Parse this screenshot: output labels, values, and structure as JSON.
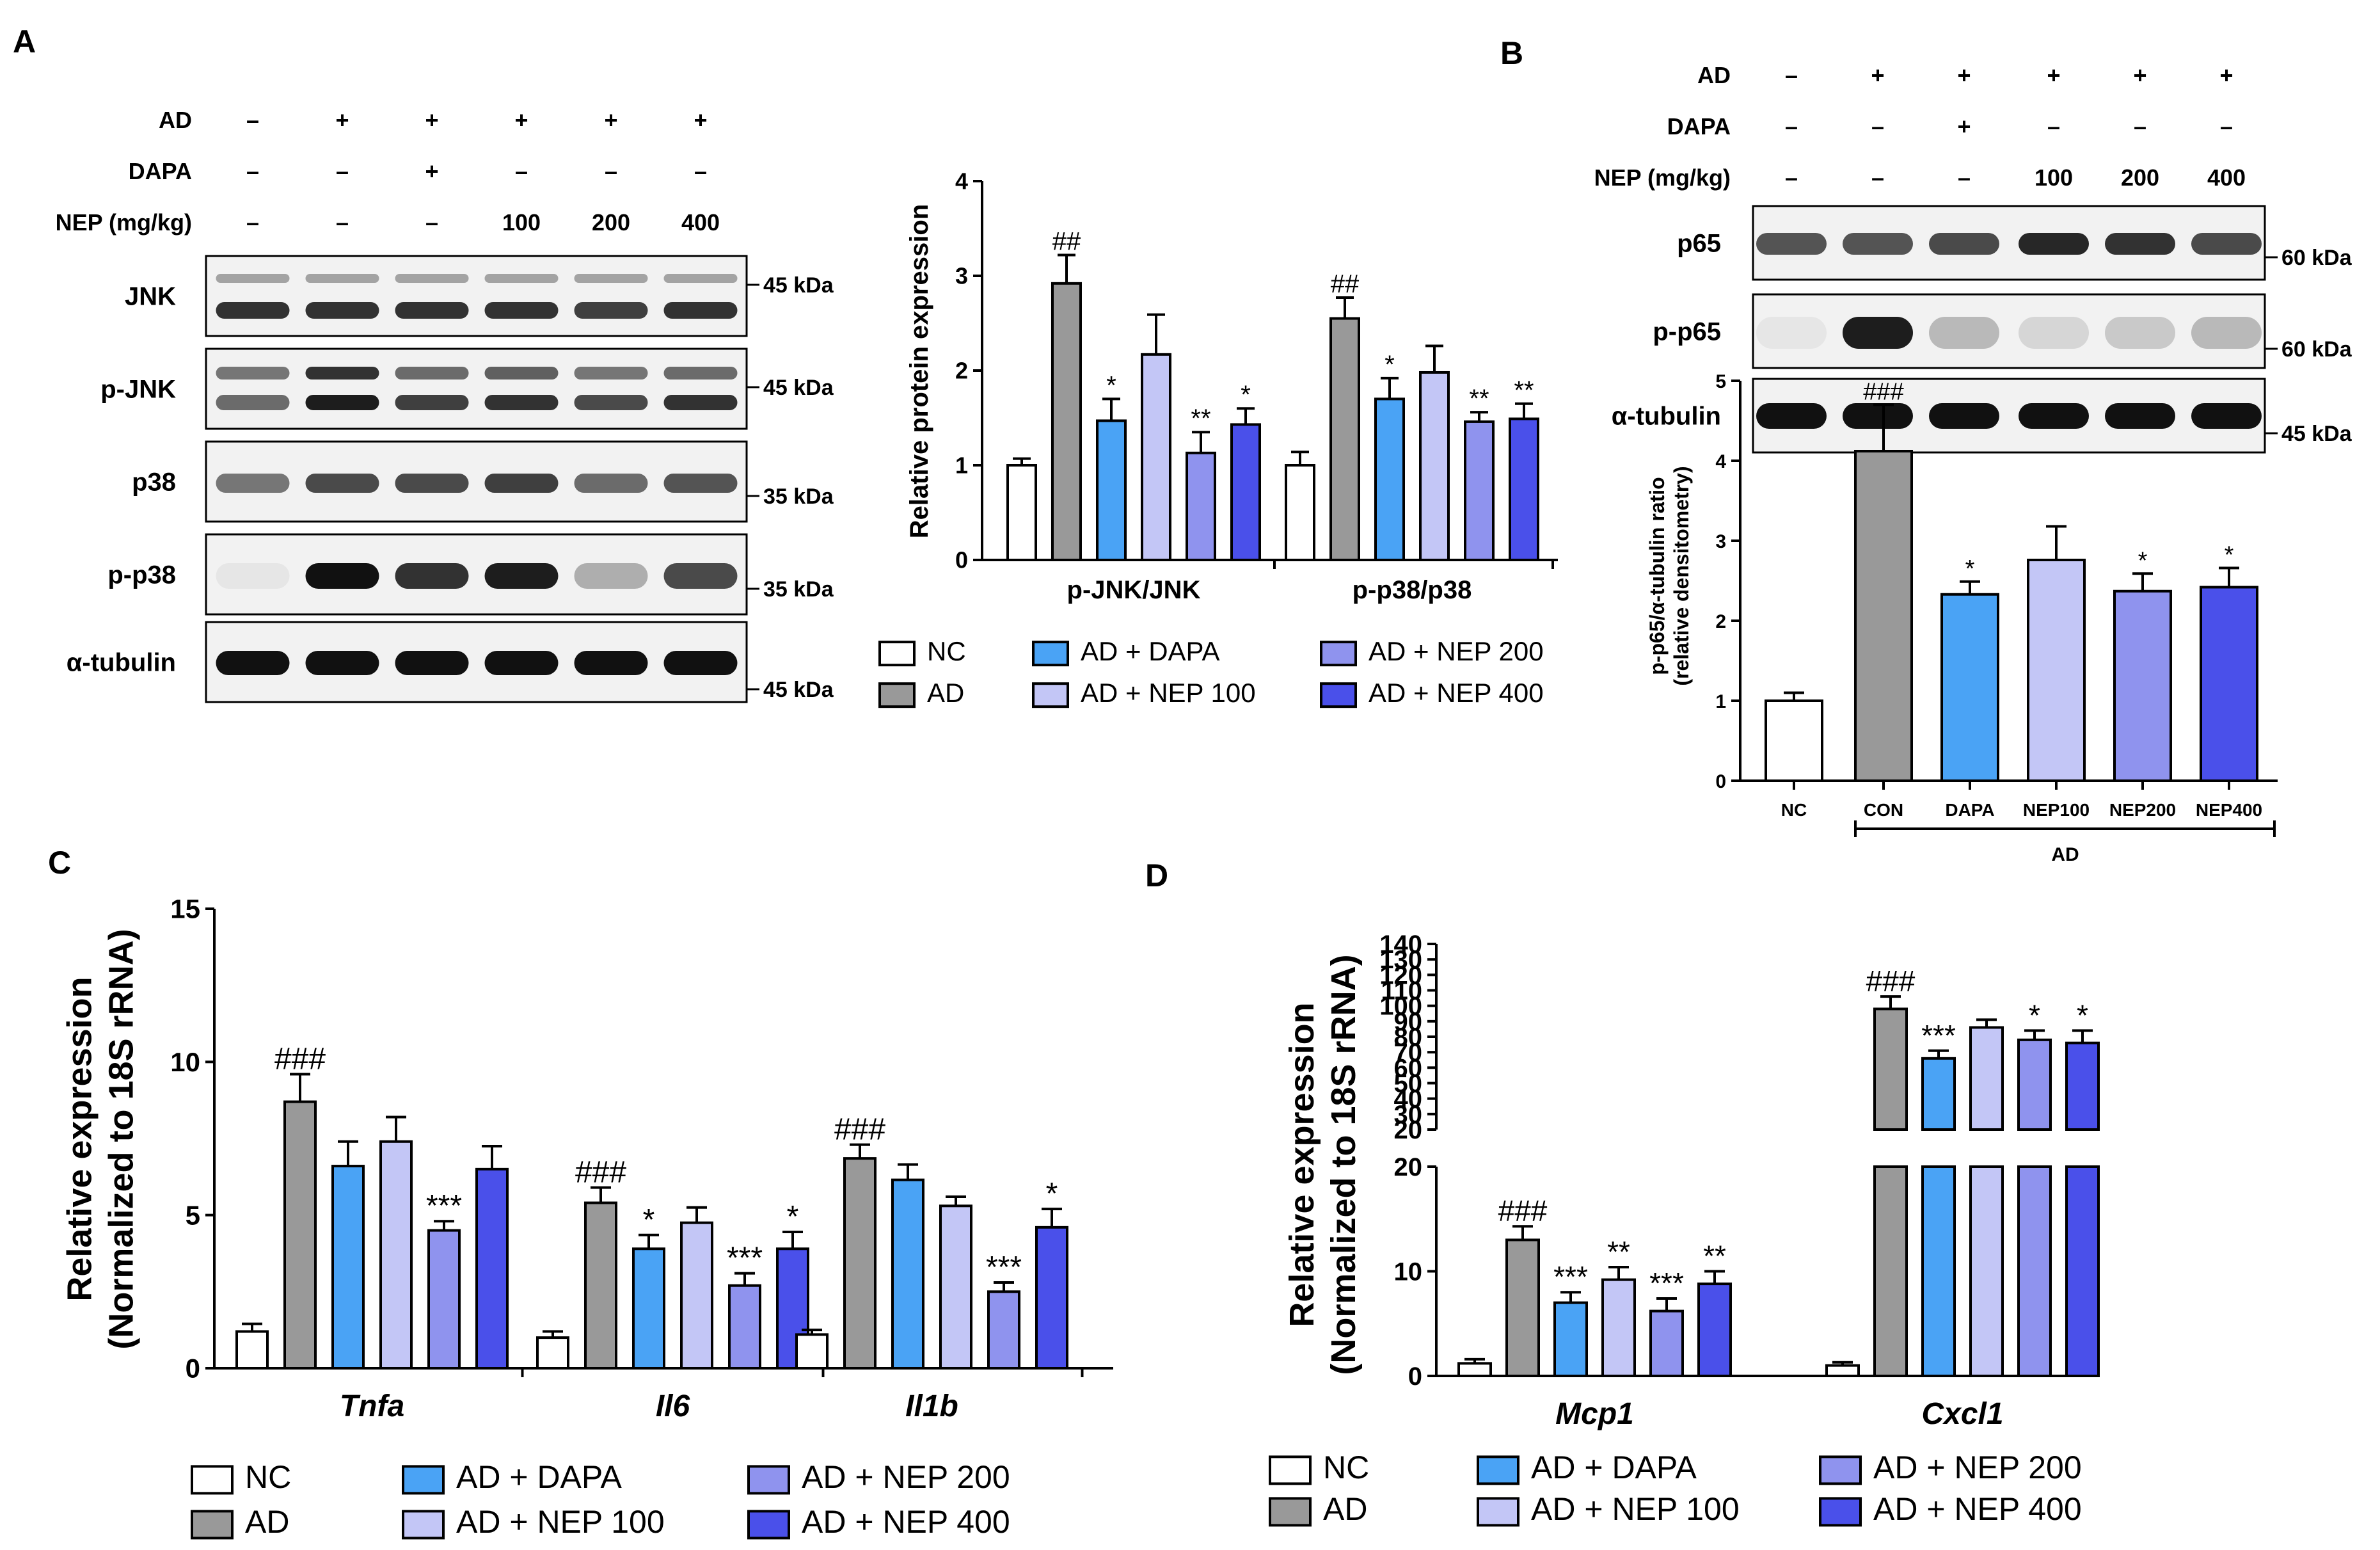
{
  "panels": [
    {
      "id": "A",
      "label": "A"
    },
    {
      "id": "B",
      "label": "B"
    },
    {
      "id": "C",
      "label": "C"
    },
    {
      "id": "D",
      "label": "D"
    }
  ],
  "legend": {
    "entries": [
      "NC",
      "AD",
      "AD + DAPA",
      "AD + NEP 100",
      "AD + NEP 200",
      "AD + NEP 400"
    ],
    "colors": [
      "#ffffff",
      "#999999",
      "#4aa3f5",
      "#c3c6f6",
      "#8f93ee",
      "#4a50ea"
    ]
  },
  "blot_a": {
    "conditions": [
      {
        "label": "AD",
        "values": [
          "–",
          "+",
          "+",
          "+",
          "+",
          "+"
        ]
      },
      {
        "label": "DAPA",
        "values": [
          "–",
          "–",
          "+",
          "–",
          "–",
          "–"
        ]
      },
      {
        "label": "NEP (mg/kg)",
        "values": [
          "–",
          "–",
          "–",
          "100",
          "200",
          "400"
        ]
      }
    ],
    "rows": [
      {
        "label": "JNK",
        "markers": [
          "45 kDa"
        ]
      },
      {
        "label": "p-JNK",
        "markers": [
          "45 kDa"
        ]
      },
      {
        "label": "p38",
        "markers": [
          "35 kDa"
        ]
      },
      {
        "label": "p-p38",
        "markers": [
          "35 kDa"
        ]
      },
      {
        "label": "α-tubulin",
        "markers": [
          "45 kDa"
        ]
      }
    ]
  },
  "blot_b": {
    "conditions": [
      {
        "label": "AD",
        "values": [
          "–",
          "+",
          "+",
          "+",
          "+",
          "+"
        ]
      },
      {
        "label": "DAPA",
        "values": [
          "–",
          "–",
          "+",
          "–",
          "–",
          "–"
        ]
      },
      {
        "label": "NEP (mg/kg)",
        "values": [
          "–",
          "–",
          "–",
          "100",
          "200",
          "400"
        ]
      }
    ],
    "rows": [
      {
        "label": "p65",
        "markers": [
          "60 kDa"
        ]
      },
      {
        "label": "p-p65",
        "markers": [
          "60 kDa"
        ]
      },
      {
        "label": "α-tubulin",
        "markers": [
          "45 kDa"
        ]
      }
    ]
  },
  "chart_data": [
    {
      "panel": "A",
      "type": "bar",
      "title": "",
      "ylabel": "Relative protein expression",
      "ylim": [
        0,
        4
      ],
      "yticks": [
        0,
        1,
        2,
        3,
        4
      ],
      "categories": [
        "p-JNK/JNK",
        "p-p38/p38"
      ],
      "series": [
        {
          "name": "NC",
          "values": [
            1.0,
            1.0
          ],
          "errors": [
            0.07,
            0.14
          ],
          "marks": [
            "",
            ""
          ]
        },
        {
          "name": "AD",
          "values": [
            2.92,
            2.55
          ],
          "errors": [
            0.3,
            0.22
          ],
          "marks": [
            "##",
            "##"
          ]
        },
        {
          "name": "AD + DAPA",
          "values": [
            1.47,
            1.7
          ],
          "errors": [
            0.23,
            0.22
          ],
          "marks": [
            "*",
            "*"
          ]
        },
        {
          "name": "AD + NEP 100",
          "values": [
            2.17,
            1.98
          ],
          "errors": [
            0.42,
            0.28
          ],
          "marks": [
            "",
            ""
          ]
        },
        {
          "name": "AD + NEP 200",
          "values": [
            1.13,
            1.46
          ],
          "errors": [
            0.22,
            0.1
          ],
          "marks": [
            "**",
            "**"
          ]
        },
        {
          "name": "AD + NEP 400",
          "values": [
            1.43,
            1.49
          ],
          "errors": [
            0.17,
            0.16
          ],
          "marks": [
            "*",
            "**"
          ]
        }
      ]
    },
    {
      "panel": "B",
      "type": "bar",
      "title": "",
      "ylabel": "p-p65/α-tubulin ratio\n(relative densitometry)",
      "ylim": [
        0,
        5
      ],
      "yticks": [
        0,
        1,
        2,
        3,
        4,
        5
      ],
      "categories": [
        "NC",
        "CON",
        "DAPA",
        "NEP100",
        "NEP200",
        "NEP400"
      ],
      "group_label": "AD",
      "values": [
        1.0,
        4.12,
        2.33,
        2.76,
        2.37,
        2.42
      ],
      "errors": [
        0.1,
        0.58,
        0.16,
        0.42,
        0.22,
        0.24
      ],
      "marks": [
        "",
        "###",
        "*",
        "",
        "*",
        "*"
      ]
    },
    {
      "panel": "C",
      "type": "bar",
      "title": "",
      "ylabel": "Relative expression\n(Normalized to 18S rRNA)",
      "ylim": [
        0,
        15
      ],
      "yticks": [
        0,
        5,
        10,
        15
      ],
      "categories": [
        "Tnfa",
        "Il6",
        "Il1b"
      ],
      "series": [
        {
          "name": "NC",
          "values": [
            1.2,
            1.0,
            1.1
          ],
          "errors": [
            0.25,
            0.2,
            0.15
          ],
          "marks": [
            "",
            "",
            ""
          ]
        },
        {
          "name": "AD",
          "values": [
            8.7,
            5.4,
            6.85
          ],
          "errors": [
            0.9,
            0.5,
            0.45
          ],
          "marks": [
            "###",
            "###",
            "###"
          ]
        },
        {
          "name": "AD + DAPA",
          "values": [
            6.6,
            3.9,
            6.15
          ],
          "errors": [
            0.8,
            0.45,
            0.5
          ],
          "marks": [
            "",
            "*",
            ""
          ]
        },
        {
          "name": "AD + NEP 100",
          "values": [
            7.4,
            4.75,
            5.3
          ],
          "errors": [
            0.8,
            0.5,
            0.3
          ],
          "marks": [
            "",
            "",
            ""
          ]
        },
        {
          "name": "AD + NEP 200",
          "values": [
            4.5,
            2.7,
            2.5
          ],
          "errors": [
            0.3,
            0.4,
            0.3
          ],
          "marks": [
            "***",
            "***",
            "***"
          ]
        },
        {
          "name": "AD + NEP 400",
          "values": [
            6.5,
            3.9,
            4.6
          ],
          "errors": [
            0.75,
            0.55,
            0.6
          ],
          "marks": [
            "",
            "*",
            "*"
          ]
        }
      ]
    },
    {
      "panel": "D",
      "type": "bar",
      "title": "",
      "ylabel": "Relative expression\n(Normalized to 18S rRNA)",
      "broken_axis": {
        "lower_ylim": [
          0,
          20
        ],
        "upper_ylim": [
          20,
          140
        ]
      },
      "yticks_lower": [
        0,
        10,
        20
      ],
      "yticks_upper": [
        20,
        30,
        40,
        50,
        60,
        70,
        80,
        90,
        100,
        110,
        120,
        130,
        140
      ],
      "categories": [
        "Mcp1",
        "Cxcl1"
      ],
      "series": [
        {
          "name": "NC",
          "values": [
            1.2,
            1.0
          ],
          "errors": [
            0.4,
            0.3
          ],
          "marks": [
            "",
            ""
          ]
        },
        {
          "name": "AD",
          "values": [
            13.0,
            98.0
          ],
          "errors": [
            1.3,
            8.0
          ],
          "marks": [
            "###",
            "###"
          ]
        },
        {
          "name": "AD + DAPA",
          "values": [
            7.0,
            66.0
          ],
          "errors": [
            1.0,
            5.0
          ],
          "marks": [
            "***",
            "***"
          ]
        },
        {
          "name": "AD + NEP 100",
          "values": [
            9.2,
            86.0
          ],
          "errors": [
            1.2,
            5.0
          ],
          "marks": [
            "**",
            ""
          ]
        },
        {
          "name": "AD + NEP 200",
          "values": [
            6.2,
            78.0
          ],
          "errors": [
            1.2,
            6.0
          ],
          "marks": [
            "***",
            "*"
          ]
        },
        {
          "name": "AD + NEP 400",
          "values": [
            8.8,
            76.0
          ],
          "errors": [
            1.2,
            8.0
          ],
          "marks": [
            "**",
            "*"
          ]
        }
      ]
    }
  ]
}
